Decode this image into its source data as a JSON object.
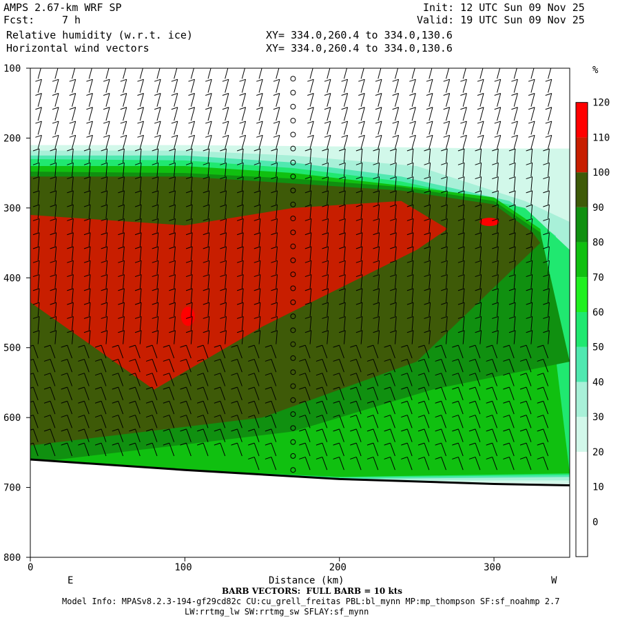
{
  "header": {
    "model": "AMPS 2.67-km WRF SP",
    "fcst_label": "Fcst:",
    "fcst_value": "7 h",
    "field1": "Relative humidity (w.r.t. ice)",
    "field2": "Horizontal wind vectors",
    "init": "Init: 12 UTC Sun 09 Nov 25",
    "valid": "Valid: 19 UTC Sun 09 Nov 25",
    "xy1": "XY= 334.0,260.4 to 334.0,130.6",
    "xy2": "XY= 334.0,260.4 to 334.0,130.6"
  },
  "footer": {
    "x_left_dir": "E",
    "x_right_dir": "W",
    "xlabel": "Distance (km)",
    "barb_note": "BARB VECTORS:  FULL BARB = 10 kts",
    "model_info1": "Model Info: MPASv8.2.3-194-gf29cd82c CU:cu_grell_freitas PBL:bl_mynn MP:mp_thompson SF:sf_noahmp 2.7",
    "model_info2": "LW:rrtmg_lw SW:rrtmg_sw SFLAY:sf_mynn"
  },
  "chart_data": {
    "type": "heatmap",
    "title": "Relative humidity (w.r.t. ice)",
    "xlabel": "Distance (km)",
    "ylabel": "",
    "xlim": [
      0,
      349
    ],
    "ylim": [
      800,
      100
    ],
    "x_ticks": [
      0,
      100,
      200,
      300
    ],
    "y_ticks": [
      100,
      200,
      300,
      400,
      500,
      600,
      700,
      800
    ],
    "colorbar": {
      "unit": "%",
      "levels": [
        0,
        10,
        20,
        30,
        40,
        50,
        60,
        70,
        80,
        90,
        100,
        110,
        120
      ],
      "colors": [
        "#ffffff",
        "#ffffff",
        "#ffffff",
        "#d2f8ea",
        "#a8f0d8",
        "#50e8b0",
        "#20e870",
        "#20f020",
        "#10c010",
        "#109010",
        "#3e5a08",
        "#c81e00",
        "#ff0000"
      ]
    },
    "contour_bands": [
      {
        "level": "30-40",
        "color": "#d2f8ea",
        "top": [
          [
            0,
            210
          ],
          [
            100,
            210
          ],
          [
            200,
            212
          ],
          [
            300,
            215
          ],
          [
            349,
            215
          ]
        ],
        "bottom": [
          [
            0,
            665
          ],
          [
            200,
            690
          ],
          [
            349,
            695
          ]
        ]
      },
      {
        "level": "40-50",
        "color": "#a8f0d8",
        "top": [
          [
            0,
            218
          ],
          [
            100,
            218
          ],
          [
            170,
            225
          ],
          [
            250,
            240
          ],
          [
            320,
            290
          ],
          [
            349,
            320
          ]
        ],
        "bottom": [
          [
            0,
            665
          ],
          [
            200,
            690
          ],
          [
            349,
            690
          ]
        ]
      },
      {
        "level": "50-60",
        "color": "#50e8b0",
        "top": [
          [
            0,
            225
          ],
          [
            100,
            225
          ],
          [
            170,
            235
          ],
          [
            240,
            255
          ],
          [
            310,
            290
          ],
          [
            340,
            340
          ]
        ],
        "bottom": [
          [
            0,
            665
          ],
          [
            200,
            688
          ],
          [
            349,
            685
          ]
        ]
      },
      {
        "level": "60-70",
        "color": "#20e870",
        "top": [
          [
            0,
            230
          ],
          [
            100,
            232
          ],
          [
            170,
            243
          ],
          [
            240,
            262
          ],
          [
            320,
            300
          ],
          [
            349,
            360
          ]
        ],
        "bottom": [
          [
            0,
            665
          ],
          [
            200,
            686
          ],
          [
            349,
            682
          ]
        ]
      },
      {
        "level": "80-90",
        "color": "#10c010",
        "top": [
          [
            0,
            240
          ],
          [
            100,
            240
          ],
          [
            170,
            250
          ],
          [
            240,
            268
          ],
          [
            300,
            285
          ],
          [
            330,
            330
          ]
        ],
        "bottom": [
          [
            0,
            665
          ],
          [
            200,
            685
          ],
          [
            349,
            680
          ]
        ]
      },
      {
        "level": "90-100",
        "color": "#109010",
        "top": [
          [
            0,
            248
          ],
          [
            100,
            250
          ],
          [
            170,
            258
          ],
          [
            240,
            270
          ],
          [
            300,
            290
          ],
          [
            330,
            335
          ]
        ],
        "bottom": [
          [
            0,
            665
          ],
          [
            170,
            620
          ],
          [
            260,
            560
          ],
          [
            349,
            520
          ]
        ]
      },
      {
        "level": "100-110",
        "color": "#3e5a08",
        "top": [
          [
            0,
            255
          ],
          [
            100,
            255
          ],
          [
            170,
            265
          ],
          [
            240,
            275
          ],
          [
            300,
            295
          ],
          [
            325,
            335
          ]
        ],
        "bottom": [
          [
            0,
            640
          ],
          [
            150,
            600
          ],
          [
            250,
            520
          ],
          [
            330,
            350
          ]
        ]
      },
      {
        "level": "110-120",
        "color": "#c81e00",
        "top": [
          [
            0,
            310
          ],
          [
            100,
            325
          ],
          [
            170,
            300
          ],
          [
            240,
            290
          ],
          [
            270,
            330
          ]
        ],
        "bottom": [
          [
            0,
            435
          ],
          [
            80,
            560
          ],
          [
            150,
            470
          ],
          [
            250,
            360
          ]
        ]
      }
    ],
    "terrain_surface": [
      [
        0,
        660
      ],
      [
        100,
        675
      ],
      [
        200,
        688
      ],
      [
        300,
        695
      ],
      [
        349,
        697
      ]
    ],
    "barb_note": "FULL BARB = 10 kts"
  }
}
